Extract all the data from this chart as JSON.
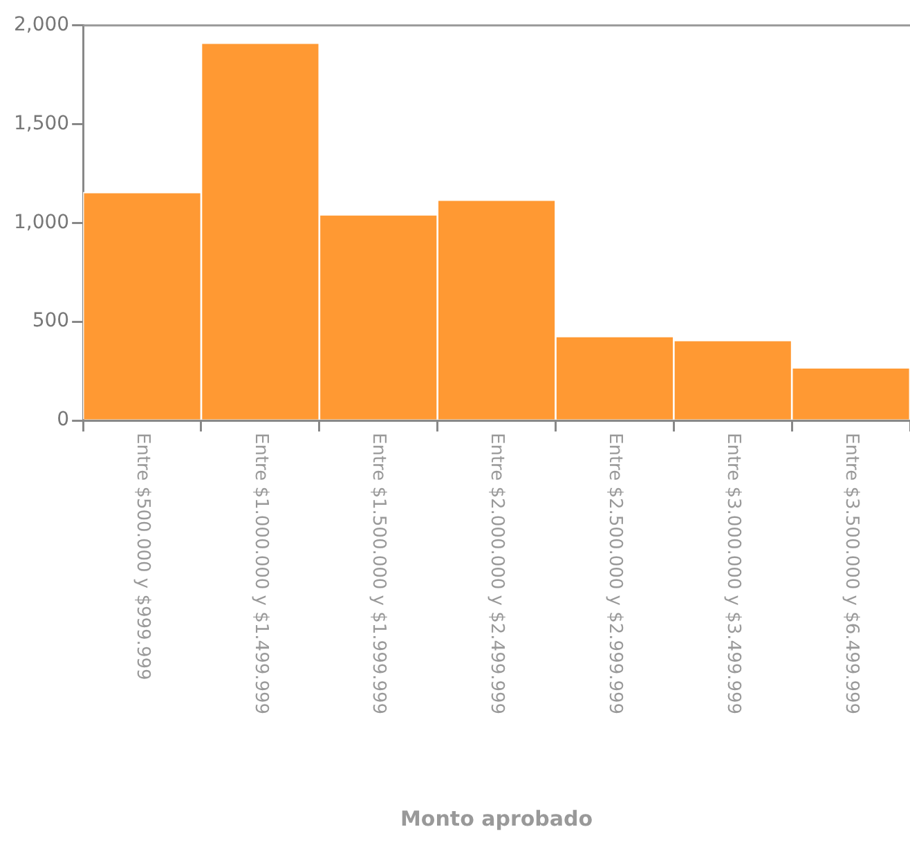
{
  "chart_data": {
    "type": "bar",
    "xlabel": "Monto aprobado",
    "categories": [
      "Entre $500.000 y $999.999",
      "Entre $1.000.000 y $1.499.999",
      "Entre $1.500.000 y $1.999.999",
      "Entre $2.000.000 y $2.499.999",
      "Entre $2.500.000 y $2.999.999",
      "Entre $3.000.000 y $3.499.999",
      "Entre $3.500.000 y $6.499.999"
    ],
    "values": [
      1155,
      1911,
      1042,
      1116,
      426,
      406,
      267
    ],
    "color": "#ff9933",
    "ylim": [
      0,
      2000
    ],
    "yticks": [
      {
        "value": 0,
        "label": "0"
      },
      {
        "value": 500,
        "label": "500"
      },
      {
        "value": 1000,
        "label": "1,000"
      },
      {
        "value": 1500,
        "label": "1,500"
      },
      {
        "value": 2000,
        "label": "2,000"
      }
    ],
    "grid": false,
    "legend": false
  }
}
